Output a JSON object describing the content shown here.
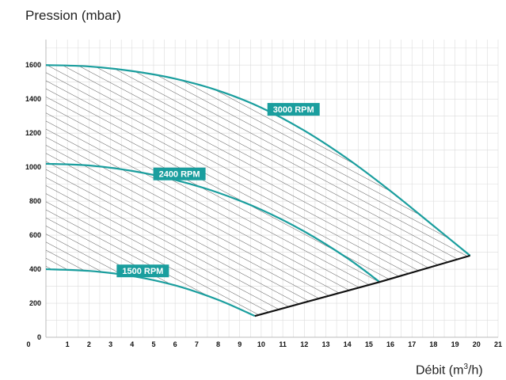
{
  "chart_data": {
    "type": "line",
    "ylabel": "Pression (mbar)",
    "xlabel_base": "Débit (m",
    "xlabel_sup": "3",
    "xlabel_tail": "/h)",
    "xlim": [
      0,
      21
    ],
    "ylim": [
      0,
      1750
    ],
    "x_ticks": [
      0,
      1,
      2,
      3,
      4,
      5,
      6,
      7,
      8,
      9,
      10,
      11,
      12,
      13,
      14,
      15,
      16,
      17,
      18,
      19,
      20,
      21
    ],
    "x_tick_labels": [
      "0",
      "1",
      "2",
      "3",
      "4",
      "5",
      "6",
      "7",
      "8",
      "9",
      "10",
      "11",
      "12",
      "13",
      "14",
      "15",
      "16",
      "17",
      "18",
      "19",
      "20",
      "21"
    ],
    "y_ticks": [
      0,
      200,
      400,
      600,
      800,
      1000,
      1200,
      1400,
      1600
    ],
    "y_tick_labels": [
      "0",
      "200",
      "400",
      "600",
      "800",
      "1000",
      "1200",
      "1400",
      "1600"
    ],
    "grid": true,
    "hatched_operating_area": true,
    "series": [
      {
        "name": "3000 RPM",
        "color": "#1a9e9e",
        "label_at": [
          11.5,
          1340
        ],
        "x": [
          0,
          2,
          4,
          6,
          8,
          10,
          12,
          14,
          16,
          18,
          19.7
        ],
        "y": [
          1600,
          1592,
          1565,
          1520,
          1450,
          1350,
          1215,
          1050,
          860,
          655,
          480
        ]
      },
      {
        "name": "2400 RPM",
        "color": "#1a9e9e",
        "label_at": [
          6.2,
          960
        ],
        "x": [
          0,
          2,
          4,
          6,
          8,
          10,
          12,
          14,
          15.5
        ],
        "y": [
          1020,
          1010,
          978,
          925,
          850,
          750,
          622,
          465,
          325
        ]
      },
      {
        "name": "1500 RPM",
        "color": "#1a9e9e",
        "label_at": [
          4.5,
          390
        ],
        "x": [
          0,
          2,
          4,
          6,
          8,
          9.7
        ],
        "y": [
          400,
          390,
          360,
          305,
          220,
          125
        ]
      },
      {
        "name": "",
        "color": "#111111",
        "x": [
          9.7,
          15.5,
          19.7
        ],
        "y": [
          125,
          325,
          480
        ]
      }
    ]
  }
}
